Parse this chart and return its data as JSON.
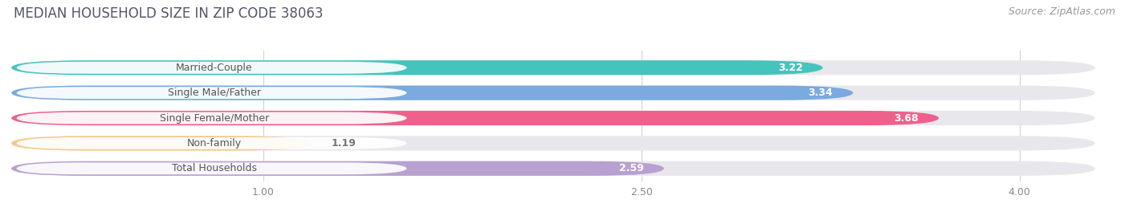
{
  "title": "MEDIAN HOUSEHOLD SIZE IN ZIP CODE 38063",
  "source": "Source: ZipAtlas.com",
  "categories": [
    "Married-Couple",
    "Single Male/Father",
    "Single Female/Mother",
    "Non-family",
    "Total Households"
  ],
  "values": [
    3.22,
    3.34,
    3.68,
    1.19,
    2.59
  ],
  "bar_colors": [
    "#45C4BC",
    "#7AAAE0",
    "#F0608C",
    "#F5C888",
    "#B8A0D0"
  ],
  "track_color": "#e8e8ec",
  "label_pill_color": "#ffffff",
  "label_text_color": "#555555",
  "value_text_color": "#ffffff",
  "value_text_color_outside": "#777777",
  "bg_color": "#ffffff",
  "title_color": "#555566",
  "source_color": "#999999",
  "xlim_min": 0.0,
  "xlim_max": 4.0,
  "xticks": [
    1.0,
    2.5,
    4.0
  ],
  "xtick_labels": [
    "1.00",
    "2.50",
    "4.00"
  ],
  "title_fontsize": 12,
  "source_fontsize": 9,
  "label_fontsize": 9,
  "value_fontsize": 9,
  "bar_height": 0.58,
  "track_extend": 4.3
}
